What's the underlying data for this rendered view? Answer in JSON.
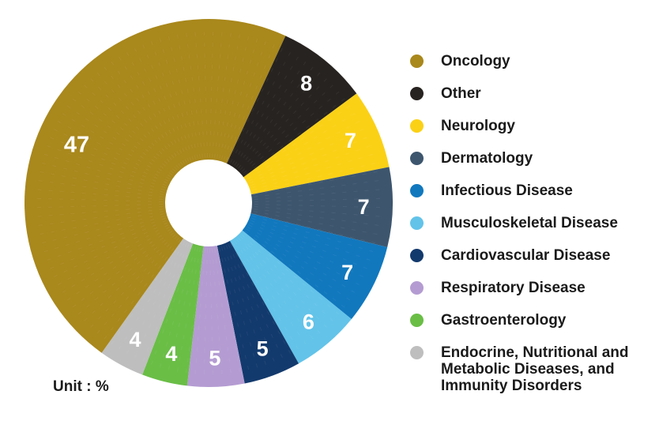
{
  "chart_data": {
    "type": "pie",
    "subtype": "donut",
    "title": "",
    "unit_label": "Unit : %",
    "start_angle_deg": -144.5,
    "legend_position": "right",
    "value_labels_color": "#FFFFFF",
    "hole_color": "#FFFFFF",
    "slices": [
      {
        "label": "Oncology",
        "value": 47,
        "color": "#A9881C"
      },
      {
        "label": "Other",
        "value": 8,
        "color": "#272320"
      },
      {
        "label": "Neurology",
        "value": 7,
        "color": "#FBD116"
      },
      {
        "label": "Dermatology",
        "value": 7,
        "color": "#3D566E"
      },
      {
        "label": "Infectious Disease",
        "value": 7,
        "color": "#1178BE"
      },
      {
        "label": "Musculoskeletal Disease",
        "value": 6,
        "color": "#63C3E9"
      },
      {
        "label": "Cardiovascular Disease",
        "value": 5,
        "color": "#133A6D"
      },
      {
        "label": "Respiratory Disease",
        "value": 5,
        "color": "#B49CD2"
      },
      {
        "label": "Gastroenterology",
        "value": 4,
        "color": "#6ABE46"
      },
      {
        "label": "Endocrine, Nutritional and Metabolic Diseases, and Immunity Disorders",
        "value": 4,
        "color": "#BEBEBE"
      }
    ]
  }
}
